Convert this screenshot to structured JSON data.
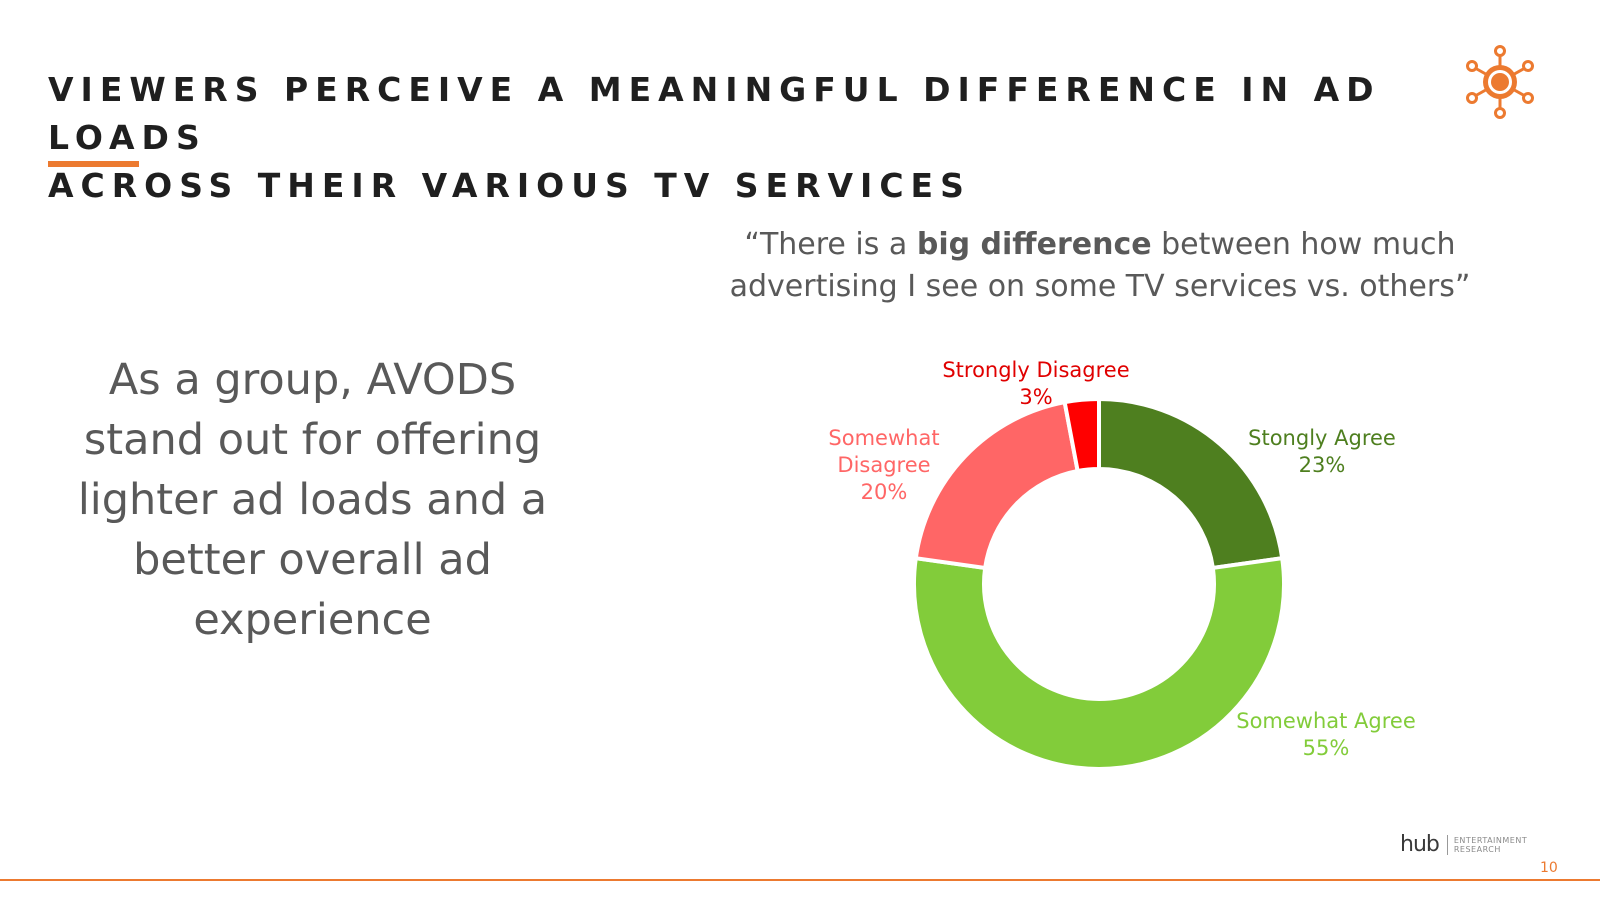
{
  "slide": {
    "title_line1": "VIEWERS PERCEIVE A MEANINGFUL DIFFERENCE IN AD LOADS",
    "title_line2": "ACROSS THEIR VARIOUS TV SERVICES",
    "accent_color": "#ec7a30",
    "logo_icon": "sun-network-icon",
    "quote": {
      "prefix": "“There is a ",
      "bold": "big difference",
      "suffix": " between how much advertising I see on some TV services vs. others”"
    },
    "side_text": "As a group, AVODS stand out for offering lighter ad loads and a better overall ad experience",
    "brand": {
      "name": "hub",
      "subtitle_line1": "ENTERTAINMENT",
      "subtitle_line2": "RESEARCH"
    },
    "page_number": "10"
  },
  "chart_data": {
    "type": "pie",
    "donut": true,
    "categories": [
      "Stongly Agree",
      "Somewhat Agree",
      "Somewhat Disagree",
      "Strongly Disagree"
    ],
    "values": [
      23,
      55,
      20,
      3
    ],
    "value_labels": [
      "23%",
      "55%",
      "20%",
      "3%"
    ],
    "label_lines": [
      [
        "Stongly Agree"
      ],
      [
        "Somewhat Agree"
      ],
      [
        "Somewhat",
        "Disagree"
      ],
      [
        "Strongly Disagree"
      ]
    ],
    "colors": [
      "#4e7f1f",
      "#82cc3a",
      "#ff6666",
      "#ff0000"
    ],
    "label_colors": [
      "#4e7f1f",
      "#82cc3a",
      "#ff6666",
      "#e00000"
    ],
    "legend": "none"
  }
}
